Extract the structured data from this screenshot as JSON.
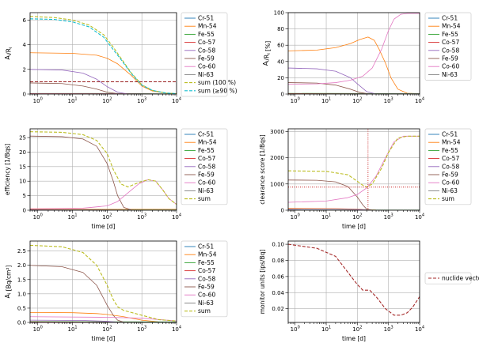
{
  "figure": {
    "width": 605,
    "height": 453
  },
  "chart_data": [
    {
      "id": "p1",
      "type": "line",
      "xlabel": "",
      "ylabel": "A_i/R_i",
      "xscale": "log",
      "xlim": [
        0.6,
        10000
      ],
      "ylim": [
        0,
        6.6
      ],
      "yticks": [
        0,
        2,
        4,
        6
      ],
      "legend": "outside-right",
      "series": [
        {
          "name": "Cr-51",
          "color": "#1f77b4",
          "style": "solid",
          "x": [
            0.6,
            5,
            20,
            60,
            150,
            300,
            700
          ],
          "y": [
            0.04,
            0.03,
            0.02,
            0.01,
            0.003,
            0.001,
            0
          ]
        },
        {
          "name": "Mn-54",
          "color": "#ff7f0e",
          "style": "solid",
          "x": [
            0.6,
            10,
            50,
            100,
            200,
            500,
            1000,
            2000,
            5000,
            10000
          ],
          "y": [
            3.35,
            3.3,
            3.15,
            2.9,
            2.45,
            1.5,
            0.65,
            0.25,
            0.07,
            0.03
          ]
        },
        {
          "name": "Fe-55",
          "color": "#2ca02c",
          "style": "solid",
          "x": [
            0.6,
            100,
            1000,
            10000
          ],
          "y": [
            0.05,
            0.05,
            0.04,
            0.01
          ]
        },
        {
          "name": "Co-57",
          "color": "#d62728",
          "style": "solid",
          "x": [
            0.6,
            100,
            1000,
            10000
          ],
          "y": [
            0.03,
            0.02,
            0.01,
            0
          ]
        },
        {
          "name": "Co-58",
          "color": "#9467bd",
          "style": "solid",
          "x": [
            0.6,
            5,
            20,
            50,
            100,
            200,
            400
          ],
          "y": [
            2.0,
            1.95,
            1.7,
            1.2,
            0.6,
            0.15,
            0
          ]
        },
        {
          "name": "Fe-59",
          "color": "#8c564b",
          "style": "solid",
          "x": [
            0.6,
            5,
            20,
            50,
            100,
            200,
            400
          ],
          "y": [
            0.9,
            0.85,
            0.65,
            0.4,
            0.15,
            0.03,
            0
          ]
        },
        {
          "name": "Co-60",
          "color": "#e377c2",
          "style": "solid",
          "x": [
            0.6,
            100,
            1000,
            10000
          ],
          "y": [
            0.02,
            0.02,
            0.02,
            0.01
          ]
        },
        {
          "name": "Ni-63",
          "color": "#7f7f7f",
          "style": "solid",
          "x": [
            0.6,
            10000
          ],
          "y": [
            0.01,
            0.01
          ]
        },
        {
          "name": "sum (100 %)",
          "color": "#bcbd22",
          "style": "dashed",
          "x": [
            0.6,
            3,
            10,
            30,
            80,
            150,
            250,
            500,
            1000,
            2000,
            5000,
            10000
          ],
          "y": [
            6.3,
            6.2,
            6.0,
            5.6,
            4.8,
            3.8,
            2.9,
            1.7,
            0.75,
            0.3,
            0.08,
            0.03
          ]
        },
        {
          "name": "sum (≥90 %)",
          "color": "#17becf",
          "style": "dashed",
          "x": [
            0.6,
            3,
            10,
            30,
            80,
            150,
            250,
            500,
            1000,
            2000,
            5000,
            10000
          ],
          "y": [
            6.1,
            6.05,
            5.85,
            5.45,
            4.6,
            3.6,
            2.8,
            1.65,
            0.72,
            0.3,
            0.08,
            0.03
          ]
        }
      ],
      "hlines": [
        {
          "y": 1,
          "color": "#8b0000",
          "style": "dashed"
        }
      ],
      "vlines": []
    },
    {
      "id": "p2",
      "type": "line",
      "xlabel": "",
      "ylabel": "A_i/R_i [%]",
      "xscale": "log",
      "xlim": [
        0.6,
        10000
      ],
      "ylim": [
        0,
        100
      ],
      "yticks": [
        0,
        20,
        40,
        60,
        80,
        100
      ],
      "legend": "outside-right",
      "series": [
        {
          "name": "Cr-51",
          "color": "#1f77b4",
          "style": "solid",
          "x": [
            0.6,
            50,
            300
          ],
          "y": [
            0.6,
            0.3,
            0
          ]
        },
        {
          "name": "Mn-54",
          "color": "#ff7f0e",
          "style": "solid",
          "x": [
            0.6,
            5,
            20,
            60,
            120,
            220,
            350,
            500,
            800,
            1200,
            2000,
            4000,
            10000
          ],
          "y": [
            53,
            54,
            57,
            62,
            67,
            70,
            66,
            55,
            38,
            20,
            6,
            1,
            0.5
          ]
        },
        {
          "name": "Fe-55",
          "color": "#2ca02c",
          "style": "solid",
          "x": [
            0.6,
            10000
          ],
          "y": [
            0.8,
            0.5
          ]
        },
        {
          "name": "Co-57",
          "color": "#d62728",
          "style": "solid",
          "x": [
            0.6,
            10000
          ],
          "y": [
            0.5,
            0
          ]
        },
        {
          "name": "Co-58",
          "color": "#9467bd",
          "style": "solid",
          "x": [
            0.6,
            5,
            20,
            60,
            120,
            200,
            400
          ],
          "y": [
            32,
            31,
            28,
            20,
            10,
            3,
            0
          ]
        },
        {
          "name": "Fe-59",
          "color": "#8c564b",
          "style": "solid",
          "x": [
            0.6,
            5,
            20,
            60,
            120,
            250
          ],
          "y": [
            14,
            13.5,
            11,
            6,
            2,
            0
          ]
        },
        {
          "name": "Co-60",
          "color": "#e377c2",
          "style": "solid",
          "x": [
            0.6,
            5,
            20,
            60,
            150,
            300,
            600,
            1000,
            1500,
            2500,
            4000,
            10000
          ],
          "y": [
            12,
            12.5,
            14,
            17,
            22,
            32,
            55,
            78,
            92,
            98,
            99,
            99
          ]
        },
        {
          "name": "Ni-63",
          "color": "#7f7f7f",
          "style": "solid",
          "x": [
            0.6,
            10000
          ],
          "y": [
            0.2,
            0.5
          ]
        }
      ],
      "hlines": [],
      "vlines": []
    },
    {
      "id": "p3",
      "type": "line",
      "xlabel": "time [d]",
      "ylabel": "efficiency [1/Bqs]",
      "xscale": "log",
      "xlim": [
        0.6,
        10000
      ],
      "ylim": [
        0,
        28
      ],
      "yticks": [
        0,
        5,
        10,
        15,
        20,
        25
      ],
      "legend": "outside-right",
      "series": [
        {
          "name": "Cr-51",
          "color": "#1f77b4",
          "style": "solid",
          "x": [
            0.6,
            50,
            300
          ],
          "y": [
            0.2,
            0.1,
            0
          ]
        },
        {
          "name": "Mn-54",
          "color": "#ff7f0e",
          "style": "solid",
          "x": [
            0.6,
            10000
          ],
          "y": [
            0.3,
            0.3
          ]
        },
        {
          "name": "Fe-55",
          "color": "#2ca02c",
          "style": "solid",
          "x": [
            0.6,
            10000
          ],
          "y": [
            0.1,
            0.1
          ]
        },
        {
          "name": "Co-57",
          "color": "#d62728",
          "style": "solid",
          "x": [
            0.6,
            10000
          ],
          "y": [
            0.1,
            0
          ]
        },
        {
          "name": "Co-58",
          "color": "#9467bd",
          "style": "solid",
          "x": [
            0.6,
            10000
          ],
          "y": [
            0.15,
            0
          ]
        },
        {
          "name": "Fe-59",
          "color": "#8c564b",
          "style": "solid",
          "x": [
            0.6,
            5,
            20,
            50,
            100,
            150,
            200,
            300,
            500
          ],
          "y": [
            25.5,
            25.3,
            24.5,
            22,
            16,
            10,
            5,
            1,
            0.1
          ]
        },
        {
          "name": "Co-60",
          "color": "#e377c2",
          "style": "solid",
          "x": [
            0.6,
            20,
            100,
            200,
            400,
            800,
            1500,
            2500,
            4000,
            6000,
            10000
          ],
          "y": [
            0.5,
            0.7,
            1.5,
            3,
            6,
            9,
            10.5,
            10,
            7,
            4,
            2
          ]
        },
        {
          "name": "Ni-63",
          "color": "#7f7f7f",
          "style": "solid",
          "x": [
            0.6,
            10000
          ],
          "y": [
            0.05,
            0.05
          ]
        },
        {
          "name": "sum",
          "color": "#bcbd22",
          "style": "dashed",
          "x": [
            0.6,
            5,
            20,
            50,
            100,
            150,
            250,
            400,
            800,
            1500,
            2500,
            4000,
            6000,
            10000
          ],
          "y": [
            27,
            26.8,
            26,
            24,
            19.5,
            14,
            9,
            8,
            9.5,
            10.5,
            10,
            7,
            4,
            2
          ]
        }
      ],
      "hlines": [],
      "vlines": []
    },
    {
      "id": "p4",
      "type": "line",
      "xlabel": "time [d]",
      "ylabel": "clearance score [1/Bqs]",
      "xscale": "log",
      "xlim": [
        0.6,
        10000
      ],
      "ylim": [
        0,
        3100
      ],
      "yticks": [
        0,
        1000,
        2000,
        3000
      ],
      "legend": "outside-right",
      "series": [
        {
          "name": "Cr-51",
          "color": "#1f77b4",
          "style": "solid",
          "x": [
            0.6,
            10000
          ],
          "y": [
            5,
            0
          ]
        },
        {
          "name": "Mn-54",
          "color": "#ff7f0e",
          "style": "solid",
          "x": [
            0.6,
            20,
            100,
            200,
            400
          ],
          "y": [
            70,
            60,
            40,
            15,
            5
          ]
        },
        {
          "name": "Fe-55",
          "color": "#2ca02c",
          "style": "solid",
          "x": [
            0.6,
            10000
          ],
          "y": [
            5,
            5
          ]
        },
        {
          "name": "Co-57",
          "color": "#d62728",
          "style": "solid",
          "x": [
            0.6,
            10000
          ],
          "y": [
            5,
            0
          ]
        },
        {
          "name": "Co-58",
          "color": "#9467bd",
          "style": "solid",
          "x": [
            0.6,
            20,
            100,
            200,
            400
          ],
          "y": [
            50,
            45,
            30,
            10,
            0
          ]
        },
        {
          "name": "Fe-59",
          "color": "#8c564b",
          "style": "solid",
          "x": [
            0.6,
            5,
            20,
            50,
            100,
            150,
            200,
            300
          ],
          "y": [
            1150,
            1140,
            1080,
            900,
            500,
            200,
            40,
            0
          ]
        },
        {
          "name": "Co-60",
          "color": "#e377c2",
          "style": "solid",
          "x": [
            0.6,
            10,
            50,
            100,
            200,
            400,
            800,
            1500,
            3000,
            5000,
            10000
          ],
          "y": [
            300,
            350,
            480,
            600,
            850,
            1300,
            2000,
            2600,
            2820,
            2820,
            2820
          ]
        },
        {
          "name": "Ni-63",
          "color": "#7f7f7f",
          "style": "solid",
          "x": [
            0.6,
            10000
          ],
          "y": [
            3,
            3
          ]
        },
        {
          "name": "sum",
          "color": "#bcbd22",
          "style": "dashed",
          "x": [
            0.6,
            10,
            50,
            100,
            150,
            200,
            300,
            600,
            1000,
            2000,
            4000,
            10000
          ],
          "y": [
            1500,
            1480,
            1350,
            1100,
            950,
            880,
            1000,
            1600,
            2200,
            2750,
            2820,
            2820
          ]
        }
      ],
      "hlines": [
        {
          "y": 880,
          "color": "#c81e1e",
          "style": "dotted"
        }
      ],
      "vlines": [
        {
          "x": 220,
          "color": "#c81e1e",
          "style": "dotted"
        }
      ]
    },
    {
      "id": "p5",
      "type": "line",
      "xlabel": "time [d]",
      "ylabel": "A_i [Bq/cm²]",
      "xscale": "log",
      "xlim": [
        0.6,
        10000
      ],
      "ylim": [
        0,
        2.85
      ],
      "yticks": [
        0.0,
        0.5,
        1.0,
        1.5,
        2.0,
        2.5
      ],
      "legend": "outside-right",
      "series": [
        {
          "name": "Cr-51",
          "color": "#1f77b4",
          "style": "solid",
          "x": [
            0.6,
            50,
            300
          ],
          "y": [
            0.015,
            0.01,
            0
          ]
        },
        {
          "name": "Mn-54",
          "color": "#ff7f0e",
          "style": "solid",
          "x": [
            0.6,
            10,
            50,
            100,
            300,
            1000,
            3000,
            10000
          ],
          "y": [
            0.35,
            0.34,
            0.31,
            0.28,
            0.2,
            0.08,
            0.02,
            0
          ]
        },
        {
          "name": "Fe-55",
          "color": "#2ca02c",
          "style": "solid",
          "x": [
            0.6,
            10000
          ],
          "y": [
            0.03,
            0.02
          ]
        },
        {
          "name": "Co-57",
          "color": "#d62728",
          "style": "solid",
          "x": [
            0.6,
            10000
          ],
          "y": [
            0.02,
            0
          ]
        },
        {
          "name": "Co-58",
          "color": "#9467bd",
          "style": "solid",
          "x": [
            0.6,
            20,
            100,
            200,
            400
          ],
          "y": [
            0.08,
            0.07,
            0.04,
            0.01,
            0
          ]
        },
        {
          "name": "Fe-59",
          "color": "#8c564b",
          "style": "solid",
          "x": [
            0.6,
            5,
            20,
            50,
            100,
            150,
            200,
            300
          ],
          "y": [
            2.0,
            1.95,
            1.75,
            1.3,
            0.6,
            0.25,
            0.08,
            0.01
          ]
        },
        {
          "name": "Co-60",
          "color": "#e377c2",
          "style": "solid",
          "x": [
            0.6,
            100,
            1000,
            10000
          ],
          "y": [
            0.2,
            0.18,
            0.15,
            0.05
          ]
        },
        {
          "name": "Ni-63",
          "color": "#7f7f7f",
          "style": "solid",
          "x": [
            0.6,
            10000
          ],
          "y": [
            0.01,
            0.01
          ]
        },
        {
          "name": "sum",
          "color": "#bcbd22",
          "style": "dashed",
          "x": [
            0.6,
            5,
            20,
            50,
            100,
            150,
            200,
            300,
            500,
            1000,
            3000,
            10000
          ],
          "y": [
            2.7,
            2.65,
            2.45,
            2.0,
            1.3,
            0.8,
            0.55,
            0.42,
            0.35,
            0.25,
            0.1,
            0.05
          ]
        }
      ],
      "hlines": [],
      "vlines": []
    },
    {
      "id": "p6",
      "type": "line",
      "xlabel": "time [d]",
      "ylabel": "monitor units [ips/Bq]",
      "xscale": "log",
      "xlim": [
        0.6,
        10000
      ],
      "ylim": [
        0.003,
        0.104
      ],
      "yticks": [
        0.02,
        0.04,
        0.06,
        0.08,
        0.1
      ],
      "legend": "outside-right",
      "series": [
        {
          "name": "nuclide vector",
          "color": "#a52a2a",
          "style": "dashed",
          "x": [
            0.6,
            5,
            20,
            50,
            100,
            150,
            250,
            400,
            800,
            1500,
            2500,
            4000,
            6000,
            10000
          ],
          "y": [
            0.1,
            0.095,
            0.085,
            0.065,
            0.05,
            0.043,
            0.043,
            0.035,
            0.02,
            0.012,
            0.012,
            0.015,
            0.022,
            0.035
          ]
        }
      ],
      "hlines": [],
      "vlines": []
    }
  ]
}
